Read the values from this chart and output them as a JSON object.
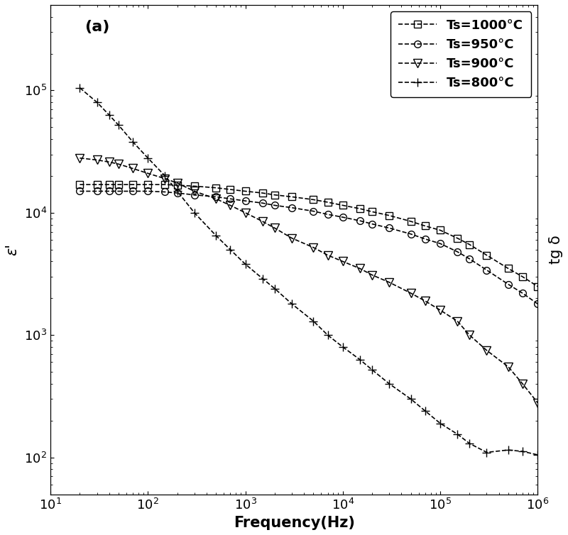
{
  "title": "(a)",
  "xlabel": "Frequency(Hz)",
  "ylabel": "ε'",
  "ylabel_right": "tg δ",
  "xlim": [
    10,
    1000000
  ],
  "ylim": [
    50,
    500000
  ],
  "series": [
    {
      "label": "Ts=1000°C",
      "marker": "s",
      "linestyle": "--",
      "freq": [
        20,
        30,
        40,
        50,
        70,
        100,
        150,
        200,
        300,
        500,
        700,
        1000,
        1500,
        2000,
        3000,
        5000,
        7000,
        10000,
        15000,
        20000,
        30000,
        50000,
        70000,
        100000,
        150000,
        200000,
        300000,
        500000,
        700000,
        1000000
      ],
      "eps": [
        17000,
        17000,
        17000,
        17000,
        17000,
        17000,
        17000,
        16800,
        16500,
        16000,
        15500,
        15000,
        14500,
        14000,
        13500,
        12800,
        12200,
        11500,
        10800,
        10200,
        9500,
        8500,
        7800,
        7200,
        6200,
        5500,
        4500,
        3500,
        3000,
        2500
      ]
    },
    {
      "label": "Ts=950°C",
      "marker": "o",
      "linestyle": "--",
      "freq": [
        20,
        30,
        40,
        50,
        70,
        100,
        150,
        200,
        300,
        500,
        700,
        1000,
        1500,
        2000,
        3000,
        5000,
        7000,
        10000,
        15000,
        20000,
        30000,
        50000,
        70000,
        100000,
        150000,
        200000,
        300000,
        500000,
        700000,
        1000000
      ],
      "eps": [
        15000,
        15000,
        15000,
        15000,
        15000,
        15000,
        14800,
        14500,
        14000,
        13500,
        13000,
        12500,
        12000,
        11500,
        11000,
        10300,
        9700,
        9200,
        8600,
        8100,
        7500,
        6700,
        6100,
        5600,
        4800,
        4200,
        3400,
        2600,
        2200,
        1800
      ]
    },
    {
      "label": "Ts=900°C",
      "marker": "v",
      "linestyle": "--",
      "freq": [
        20,
        30,
        40,
        50,
        70,
        100,
        150,
        200,
        300,
        500,
        700,
        1000,
        1500,
        2000,
        3000,
        5000,
        7000,
        10000,
        15000,
        20000,
        30000,
        50000,
        70000,
        100000,
        150000,
        200000,
        300000,
        500000,
        700000,
        1000000
      ],
      "eps": [
        28000,
        27000,
        26000,
        25000,
        23000,
        21000,
        19000,
        17500,
        15000,
        13000,
        11500,
        10000,
        8500,
        7500,
        6200,
        5200,
        4500,
        4000,
        3500,
        3100,
        2700,
        2200,
        1900,
        1600,
        1300,
        1000,
        750,
        550,
        400,
        280
      ]
    },
    {
      "label": "Ts=800°C",
      "marker": "+",
      "linestyle": "--",
      "freq": [
        20,
        30,
        40,
        50,
        70,
        100,
        150,
        200,
        300,
        500,
        700,
        1000,
        1500,
        2000,
        3000,
        5000,
        7000,
        10000,
        15000,
        20000,
        30000,
        50000,
        70000,
        100000,
        150000,
        200000,
        300000,
        500000,
        700000,
        1000000
      ],
      "eps": [
        105000,
        80000,
        63000,
        52000,
        38000,
        28000,
        20000,
        15000,
        10000,
        6500,
        5000,
        3800,
        2900,
        2400,
        1800,
        1300,
        1000,
        800,
        630,
        520,
        400,
        300,
        240,
        190,
        155,
        130,
        110,
        115,
        112,
        105
      ]
    }
  ],
  "markersize_sq": 7,
  "markersize_o": 7,
  "markersize_v": 8,
  "markersize_plus": 8,
  "linewidth": 1.2,
  "color": "black",
  "legend_fontsize": 13,
  "axis_label_fontsize": 15,
  "tick_label_fontsize": 13,
  "title_fontsize": 16,
  "background_color": "#ffffff"
}
